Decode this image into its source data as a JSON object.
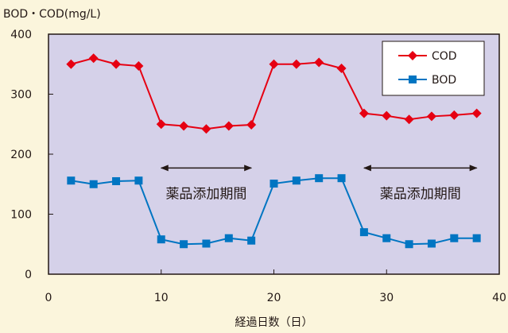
{
  "chart_data": {
    "type": "line",
    "ylabel": "BOD・COD(mg/L)",
    "xlabel": "経過日数（日）",
    "xlim": [
      0,
      40
    ],
    "ylim": [
      0,
      400
    ],
    "x_ticks": [
      0,
      10,
      20,
      30,
      40
    ],
    "y_ticks": [
      0,
      100,
      200,
      300,
      400
    ],
    "grid": false,
    "legend_position": "top-right",
    "plot_background": "#d5d1e9",
    "series": [
      {
        "name": "COD",
        "color": "#e60012",
        "marker": "diamond",
        "x": [
          2,
          4,
          6,
          8,
          10,
          12,
          14,
          16,
          18,
          20,
          22,
          24,
          26,
          28,
          30,
          32,
          34,
          36,
          38
        ],
        "values": [
          350,
          360,
          350,
          347,
          250,
          247,
          242,
          247,
          249,
          350,
          350,
          353,
          343,
          268,
          264,
          258,
          263,
          265,
          268
        ]
      },
      {
        "name": "BOD",
        "color": "#0075c2",
        "marker": "square",
        "x": [
          2,
          4,
          6,
          8,
          10,
          12,
          14,
          16,
          18,
          20,
          22,
          24,
          26,
          28,
          30,
          32,
          34,
          36,
          38
        ],
        "values": [
          156,
          150,
          155,
          156,
          58,
          50,
          51,
          60,
          56,
          151,
          156,
          160,
          160,
          70,
          60,
          50,
          51,
          60,
          60
        ]
      }
    ],
    "annotations": [
      {
        "text": "薬品添加期間",
        "x_start": 10,
        "x_end": 18,
        "arrow_y": 177
      },
      {
        "text": "薬品添加期間",
        "x_start": 28,
        "x_end": 38,
        "arrow_y": 177
      }
    ]
  }
}
